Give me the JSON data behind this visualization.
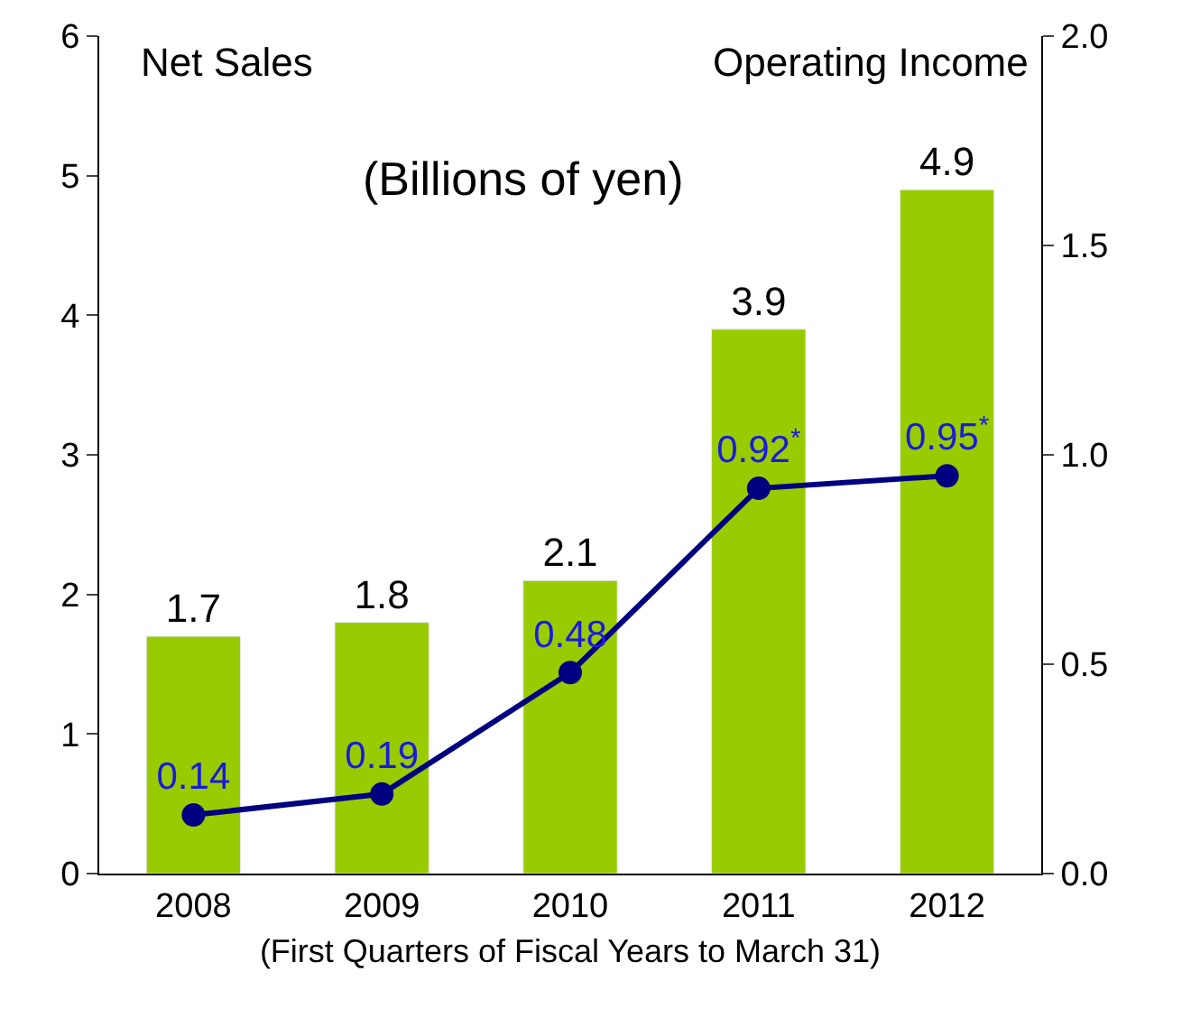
{
  "chart_data": {
    "type": "bar",
    "ylabel": "Net Sales",
    "y2label": "Operating Income",
    "xlabel": "(First Quarters of Fiscal Years to March 31)",
    "annotations": [
      "(Billions of yen)"
    ],
    "categories": [
      "2008",
      "2009",
      "2010",
      "2011",
      "2012"
    ],
    "series": [
      {
        "color": "#99cc00",
        "values": [
          1.7,
          1.8,
          2.1,
          3.9,
          4.9
        ],
        "value_labels": [
          "1.7",
          "1.8",
          "2.1",
          "3.9",
          "4.9"
        ]
      },
      {
        "type": "line",
        "axis": "y2",
        "color": "#000080",
        "values": [
          0.14,
          0.19,
          0.48,
          0.92,
          0.95
        ],
        "value_labels": [
          "0.14",
          "0.19",
          "0.48",
          "0.92$^{*}$",
          "0.95$^{*}$"
        ],
        "marker": "circle"
      }
    ],
    "ylim": [
      0,
      6
    ],
    "yticks": [
      0,
      1,
      2,
      3,
      4,
      5,
      6
    ],
    "y2lim": [
      0,
      2
    ],
    "y2ticks": [
      {
        "value": 0,
        "label": "0.0"
      },
      {
        "value": 0.5,
        "label": "0.5"
      },
      {
        "value": 1,
        "label": "1.0"
      },
      {
        "value": 1.5,
        "label": "1.5"
      },
      {
        "value": 2,
        "label": "2.0"
      }
    ]
  }
}
